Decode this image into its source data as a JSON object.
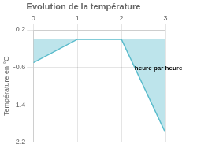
{
  "chart_data": {
    "type": "area",
    "title": "Evolution de la température",
    "ylabel": "Température en °C",
    "x": [
      0,
      1,
      2,
      3
    ],
    "values": [
      -0.5,
      0.0,
      0.0,
      -2.0
    ],
    "color": "#5bbccc",
    "xlim": [
      0,
      3
    ],
    "ylim": [
      -2.2,
      0.2
    ],
    "xticks": [
      0,
      1,
      2,
      3
    ],
    "yticks": [
      0.2,
      -0.6,
      -1.4,
      -2.2
    ],
    "grid": true,
    "annotations": [
      {
        "text": "heure par heure",
        "x": 2.3,
        "y": -0.55
      }
    ]
  }
}
